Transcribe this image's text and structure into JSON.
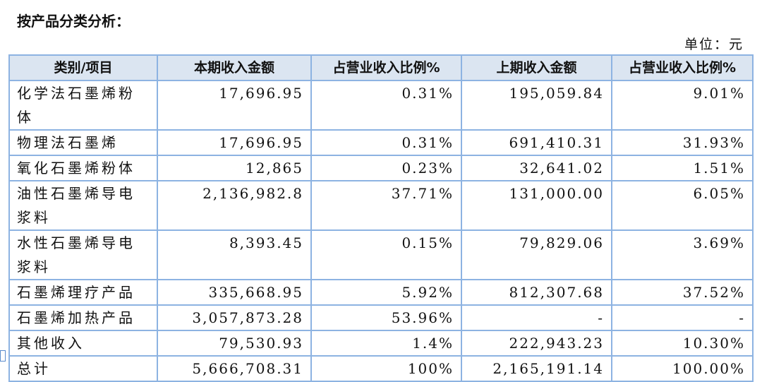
{
  "header": {
    "title": "按产品分类分析：",
    "unit": "单位：元"
  },
  "table": {
    "columns": [
      "类别/项目",
      "本期收入金额",
      "占营业收入比例%",
      "上期收入金额",
      "占营业收入比例%"
    ],
    "rows": [
      [
        "化学法石墨烯粉体",
        "17,696.95",
        "0.31%",
        "195,059.84",
        "9.01%"
      ],
      [
        "物理法石墨烯",
        "17,696.95",
        "0.31%",
        "691,410.31",
        "31.93%"
      ],
      [
        "氧化石墨烯粉体",
        "12,865",
        "0.23%",
        "32,641.02",
        "1.51%"
      ],
      [
        "油性石墨烯导电浆料",
        "2,136,982.8",
        "37.71%",
        "131,000.00",
        "6.05%"
      ],
      [
        "水性石墨烯导电浆料",
        "8,393.45",
        "0.15%",
        "79,829.06",
        "3.69%"
      ],
      [
        "石墨烯理疗产品",
        "335,668.95",
        "5.92%",
        "812,307.68",
        "37.52%"
      ],
      [
        "石墨烯加热产品",
        "3,057,873.28",
        "53.96%",
        "-",
        "-"
      ],
      [
        "其他收入",
        "79,530.93",
        "1.4%",
        "222,943.23",
        "10.30%"
      ],
      [
        "总计",
        "5,666,708.31",
        "100%",
        "2,165,191.14",
        "100.00%"
      ]
    ]
  }
}
